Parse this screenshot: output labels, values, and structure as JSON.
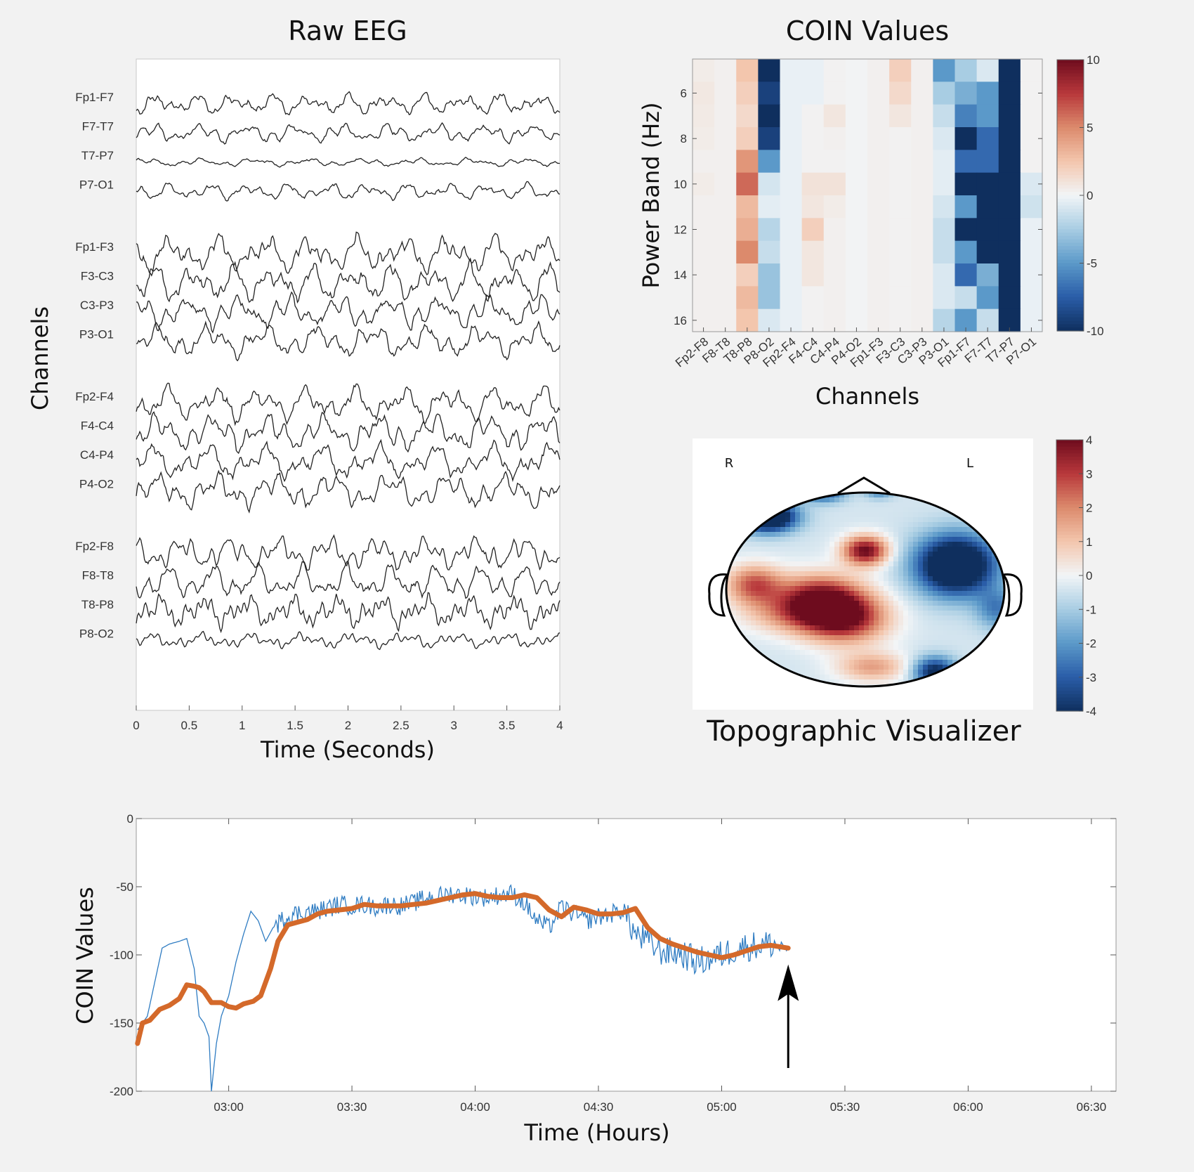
{
  "chart_data": [
    {
      "type": "line",
      "title": "Raw EEG",
      "xlabel": "Time (Seconds)",
      "ylabel": "Channels",
      "xlim": [
        0,
        4
      ],
      "xticks": [
        "0",
        "0.5",
        "1",
        "1.5",
        "2",
        "2.5",
        "3",
        "3.5",
        "4"
      ],
      "channel_groups": [
        [
          "Fp1-F7",
          "F7-T7",
          "T7-P7",
          "P7-O1"
        ],
        [
          "Fp1-F3",
          "F3-C3",
          "C3-P3",
          "P3-O1"
        ],
        [
          "Fp2-F4",
          "F4-C4",
          "C4-P4",
          "P4-O2"
        ],
        [
          "Fp2-F8",
          "F8-T8",
          "T8-P8",
          "P8-O2"
        ]
      ],
      "channel_amplitude": [
        0.9,
        0.8,
        0.35,
        0.7,
        1.6,
        1.6,
        1.4,
        1.4,
        1.5,
        1.6,
        1.5,
        1.5,
        1.4,
        1.5,
        1.3,
        0.6
      ],
      "grid": false
    },
    {
      "type": "heatmap",
      "title": "COIN Values",
      "xlabel": "Channels",
      "ylabel": "Power Band (Hz)",
      "x": [
        "Fp2-F8",
        "F8-T8",
        "T8-P8",
        "P8-O2",
        "Fp2-F4",
        "F4-C4",
        "C4-P4",
        "P4-O2",
        "Fp1-F3",
        "F3-C3",
        "C3-P3",
        "P3-O1",
        "Fp1-F7",
        "F7-T7",
        "T7-P7",
        "P7-O1"
      ],
      "y": [
        5,
        6,
        7,
        8,
        9,
        10,
        11,
        12,
        13,
        14,
        15,
        16
      ],
      "yticks": [
        "6",
        "8",
        "10",
        "12",
        "14",
        "16"
      ],
      "colorbar": {
        "min": -10,
        "max": 10,
        "ticks": [
          "10",
          "5",
          "0",
          "-5",
          "-10"
        ]
      },
      "values": [
        [
          0.5,
          0.3,
          2.5,
          -10,
          -0.3,
          -0.3,
          0.2,
          0.1,
          0.3,
          2,
          0.3,
          -5,
          -2.5,
          -0.8,
          -10,
          0.2
        ],
        [
          0.7,
          0.3,
          2,
          -9,
          -0.3,
          -0.3,
          0.2,
          0.1,
          0.3,
          1.5,
          0.3,
          -2.5,
          -4,
          -5,
          -10,
          0.2
        ],
        [
          0.6,
          0.3,
          1.5,
          -10,
          -0.3,
          0.2,
          0.8,
          0.1,
          0.3,
          0.8,
          0.3,
          -1.5,
          -6,
          -5,
          -10,
          0.2
        ],
        [
          0.5,
          0.3,
          2,
          -9,
          -0.3,
          0.2,
          0.3,
          0.1,
          0.3,
          0.2,
          0.3,
          -0.8,
          -10,
          -7,
          -10,
          0.2
        ],
        [
          0.3,
          0.3,
          4.5,
          -5,
          -0.3,
          0.2,
          0.2,
          0.1,
          0.3,
          0.2,
          0.3,
          -0.5,
          -7,
          -7,
          -10,
          0.2
        ],
        [
          0.5,
          0.3,
          6,
          -1,
          -0.3,
          1,
          1,
          0.1,
          0.3,
          0.2,
          0.3,
          -0.5,
          -10,
          -10,
          -10,
          -0.8
        ],
        [
          0.3,
          0.3,
          3,
          -0.5,
          -0.3,
          0.8,
          0.5,
          0.1,
          0.3,
          0.2,
          0.3,
          -1,
          -5,
          -10,
          -10,
          -1.2
        ],
        [
          0.3,
          0.3,
          3.5,
          -2,
          -0.3,
          2,
          0.3,
          0.1,
          0.3,
          0.2,
          0.3,
          -1.5,
          -10,
          -10,
          -10,
          -0.3
        ],
        [
          0.3,
          0.3,
          5,
          -1.5,
          -0.3,
          0.8,
          0.3,
          0.1,
          0.3,
          0.2,
          0.3,
          -1.5,
          -5,
          -10,
          -10,
          -0.3
        ],
        [
          0.3,
          0.3,
          2,
          -3,
          -0.3,
          0.8,
          0.3,
          0.1,
          0.3,
          0.2,
          0.3,
          -0.8,
          -7,
          -4,
          -10,
          -0.3
        ],
        [
          0.3,
          0.3,
          3,
          -3,
          -0.3,
          0.2,
          0.3,
          0.1,
          0.3,
          0.2,
          0.3,
          -0.8,
          -1.5,
          -5,
          -10,
          -0.3
        ],
        [
          0.3,
          0.3,
          2.5,
          -0.8,
          -0.3,
          0.2,
          0.3,
          0.1,
          0.3,
          0.2,
          0.3,
          -2,
          -5,
          -1.5,
          -10,
          -0.3
        ]
      ],
      "grid": false
    },
    {
      "type": "heatmap",
      "title": "Topographic Visualizer",
      "labels": [
        "R",
        "L"
      ],
      "colorbar": {
        "min": -4,
        "max": 4,
        "ticks": [
          "4",
          "3",
          "2",
          "1",
          "0",
          "-1",
          "-2",
          "-3",
          "-4"
        ]
      },
      "blobs": [
        {
          "u": -0.15,
          "v": -0.3,
          "sx": 0.3,
          "sy": 0.25,
          "value": 4
        },
        {
          "u": -0.33,
          "v": -0.1,
          "sx": 0.3,
          "sy": 0.25,
          "value": 4
        },
        {
          "u": 0.0,
          "v": 0.4,
          "sx": 0.16,
          "sy": 0.15,
          "value": 4.5
        },
        {
          "u": -0.8,
          "v": 0.05,
          "sx": 0.2,
          "sy": 0.2,
          "value": 3
        },
        {
          "u": -0.55,
          "v": -0.25,
          "sx": 0.35,
          "sy": 0.2,
          "value": 1.5
        },
        {
          "u": 0.05,
          "v": -0.8,
          "sx": 0.25,
          "sy": 0.15,
          "value": 2
        },
        {
          "u": 0.65,
          "v": 0.25,
          "sx": 0.28,
          "sy": 0.3,
          "value": -6
        },
        {
          "u": 0.5,
          "v": -0.85,
          "sx": 0.15,
          "sy": 0.15,
          "value": -4
        },
        {
          "u": -0.7,
          "v": 0.75,
          "sx": 0.2,
          "sy": 0.15,
          "value": -6
        },
        {
          "u": -0.3,
          "v": 1.0,
          "sx": 0.15,
          "sy": 0.1,
          "value": -3
        },
        {
          "u": 0.1,
          "v": 1.02,
          "sx": 0.1,
          "sy": 0.08,
          "value": -2
        },
        {
          "u": 0.95,
          "v": -0.2,
          "sx": 0.15,
          "sy": 0.2,
          "value": -2
        }
      ]
    },
    {
      "type": "line",
      "xlabel": "Time (Hours)",
      "ylabel": "COIN Values",
      "x_unit": "hours",
      "xlim": [
        2.625,
        6.6
      ],
      "ylim": [
        -200,
        0
      ],
      "xticks": [
        3.0,
        3.5,
        4.0,
        4.5,
        5.0,
        5.5,
        6.0,
        6.5
      ],
      "xtick_labels": [
        "03:00",
        "03:30",
        "04:00",
        "04:30",
        "05:00",
        "05:30",
        "06:00",
        "06:30"
      ],
      "yticks": [
        0,
        -50,
        -100,
        -150,
        -200
      ],
      "ytick_labels": [
        "0",
        "-50",
        "-100",
        "-150",
        "-200"
      ],
      "series": [
        {
          "color": "#2f7cc2",
          "x": [
            2.63,
            2.67,
            2.7,
            2.73,
            2.76,
            2.8,
            2.83,
            2.86,
            2.88,
            2.9,
            2.92,
            2.93,
            2.95,
            2.97,
            3.0,
            3.03,
            3.06,
            3.09,
            3.12,
            3.15,
            3.18,
            3.22,
            3.26,
            3.3,
            3.35,
            3.4,
            3.45,
            3.5,
            3.55,
            3.6,
            3.65,
            3.7,
            3.75,
            3.8,
            3.85,
            3.9,
            3.95,
            4.0,
            4.05,
            4.1,
            4.15,
            4.2,
            4.25,
            4.3,
            4.35,
            4.4,
            4.45,
            4.5,
            4.55,
            4.6,
            4.65,
            4.7,
            4.75,
            4.8,
            4.85,
            4.9,
            4.95,
            5.0,
            5.05,
            5.1,
            5.15,
            5.2,
            5.27
          ],
          "y": [
            -155,
            -145,
            -120,
            -95,
            -92,
            -90,
            -88,
            -110,
            -145,
            -150,
            -160,
            -200,
            -165,
            -145,
            -130,
            -105,
            -85,
            -68,
            -75,
            -90,
            -80,
            -74,
            -70,
            -69,
            -68,
            -66,
            -63,
            -64,
            -63,
            -65,
            -63,
            -64,
            -62,
            -58,
            -57,
            -55,
            -56,
            -57,
            -58,
            -56,
            -55,
            -62,
            -75,
            -80,
            -65,
            -70,
            -75,
            -72,
            -70,
            -67,
            -85,
            -90,
            -97,
            -98,
            -100,
            -105,
            -103,
            -100,
            -96,
            -94,
            -93,
            -92,
            -95
          ]
        },
        {
          "color": "#d4692a",
          "x": [
            2.63,
            2.65,
            2.68,
            2.72,
            2.76,
            2.8,
            2.83,
            2.86,
            2.88,
            2.9,
            2.93,
            2.97,
            3.0,
            3.03,
            3.06,
            3.1,
            3.13,
            3.17,
            3.2,
            3.24,
            3.28,
            3.32,
            3.36,
            3.4,
            3.45,
            3.5,
            3.55,
            3.6,
            3.65,
            3.7,
            3.75,
            3.8,
            3.85,
            3.9,
            3.95,
            4.0,
            4.05,
            4.1,
            4.15,
            4.2,
            4.25,
            4.3,
            4.35,
            4.4,
            4.45,
            4.5,
            4.55,
            4.6,
            4.65,
            4.7,
            4.75,
            4.8,
            4.85,
            4.9,
            4.95,
            5.0,
            5.05,
            5.1,
            5.15,
            5.2,
            5.27
          ],
          "y": [
            -165,
            -150,
            -148,
            -140,
            -137,
            -132,
            -122,
            -123,
            -124,
            -127,
            -135,
            -135,
            -138,
            -139,
            -136,
            -134,
            -130,
            -110,
            -90,
            -78,
            -76,
            -74,
            -70,
            -68,
            -67,
            -66,
            -63,
            -64,
            -64,
            -64,
            -63,
            -62,
            -60,
            -58,
            -56,
            -55,
            -57,
            -58,
            -58,
            -56,
            -58,
            -67,
            -72,
            -65,
            -67,
            -70,
            -70,
            -69,
            -66,
            -80,
            -88,
            -92,
            -95,
            -98,
            -100,
            -102,
            -100,
            -97,
            -94,
            -93,
            -95
          ]
        }
      ],
      "annotations": [
        {
          "type": "arrow",
          "x": 5.27,
          "y_from": -183,
          "y_to": -107
        }
      ],
      "grid": false
    }
  ]
}
